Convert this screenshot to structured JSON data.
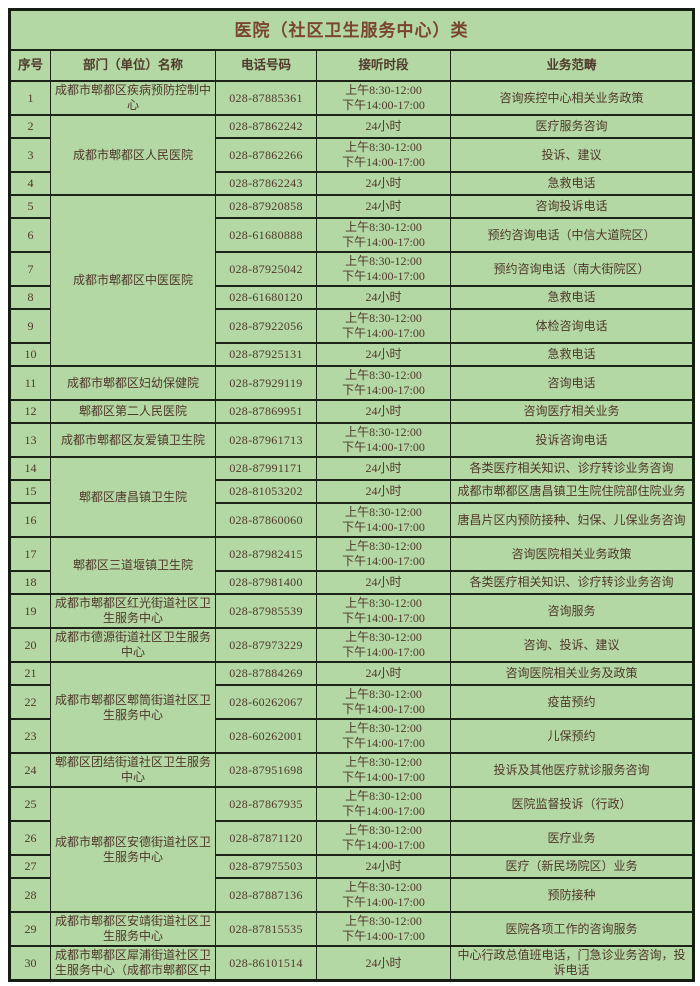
{
  "title": "医院（社区卫生服务中心）类",
  "colors": {
    "table_background": "#b3d8a4",
    "body_text": "#4f372b",
    "title_text": "#7a452f",
    "border": "#1c2418",
    "page_background": "#ffffff"
  },
  "table": {
    "headers": [
      "序号",
      "部门（单位）名称",
      "电话号码",
      "接听时段",
      "业务范畴"
    ],
    "rows": [
      {
        "no": "1",
        "dept": "成都市郫都区疾病预防控制中心",
        "dept_span": 1,
        "phone": "028-87885361",
        "hours": [
          "上午8:30-12:00",
          "下午14:00-17:00"
        ],
        "scope": "咨询疾控中心相关业务政策"
      },
      {
        "no": "2",
        "dept": "成都市郫都区人民医院",
        "dept_span": 3,
        "phone": "028-87862242",
        "hours": [
          "24小时"
        ],
        "scope": "医疗服务咨询"
      },
      {
        "no": "3",
        "phone": "028-87862266",
        "hours": [
          "上午8:30-12:00",
          "下午14:00-17:00"
        ],
        "scope": "投诉、建议"
      },
      {
        "no": "4",
        "phone": "028-87862243",
        "hours": [
          "24小时"
        ],
        "scope": "急救电话"
      },
      {
        "no": "5",
        "dept": "成都市郫都区中医医院",
        "dept_span": 6,
        "phone": "028-87920858",
        "hours": [
          "24小时"
        ],
        "scope": "咨询投诉电话"
      },
      {
        "no": "6",
        "phone": "028-61680888",
        "hours": [
          "上午8:30-12:00",
          "下午14:00-17:00"
        ],
        "scope": "预约咨询电话（中信大道院区）"
      },
      {
        "no": "7",
        "phone": "028-87925042",
        "hours": [
          "上午8:30-12:00",
          "下午14:00-17:00"
        ],
        "scope": "预约咨询电话（南大街院区）"
      },
      {
        "no": "8",
        "phone": "028-61680120",
        "hours": [
          "24小时"
        ],
        "scope": "急救电话"
      },
      {
        "no": "9",
        "phone": "028-87922056",
        "hours": [
          "上午8:30-12:00",
          "下午14:00-17:00"
        ],
        "scope": "体检咨询电话"
      },
      {
        "no": "10",
        "phone": "028-87925131",
        "hours": [
          "24小时"
        ],
        "scope": "急救电话"
      },
      {
        "no": "11",
        "dept": "成都市郫都区妇幼保健院",
        "dept_span": 1,
        "phone": "028-87929119",
        "hours": [
          "上午8:30-12:00",
          "下午14:00-17:00"
        ],
        "scope": "咨询电话"
      },
      {
        "no": "12",
        "dept": "郫都区第二人民医院",
        "dept_span": 1,
        "phone": "028-87869951",
        "hours": [
          "24小时"
        ],
        "scope": "咨询医疗相关业务"
      },
      {
        "no": "13",
        "dept": "成都市郫都区友爱镇卫生院",
        "dept_span": 1,
        "phone": "028-87961713",
        "hours": [
          "上午8:30-12:00",
          "下午14:00-17:00"
        ],
        "scope": "投诉咨询电话"
      },
      {
        "no": "14",
        "dept": "郫都区唐昌镇卫生院",
        "dept_span": 3,
        "phone": "028-87991171",
        "hours": [
          "24小时"
        ],
        "scope": "各类医疗相关知识、诊疗转诊业务咨询"
      },
      {
        "no": "15",
        "phone": "028-81053202",
        "hours": [
          "24小时"
        ],
        "scope": "成都市郫都区唐昌镇卫生院住院部住院业务"
      },
      {
        "no": "16",
        "phone": "028-87860060",
        "hours": [
          "上午8:30-12:00",
          "下午14:00-17:00"
        ],
        "scope": "唐昌片区内预防接种、妇保、儿保业务咨询"
      },
      {
        "no": "17",
        "dept": "郫都区三道堰镇卫生院",
        "dept_span": 2,
        "phone": "028-87982415",
        "hours": [
          "上午8:30-12:00",
          "下午14:00-17:00"
        ],
        "scope": "咨询医院相关业务政策"
      },
      {
        "no": "18",
        "phone": "028-87981400",
        "hours": [
          "24小时"
        ],
        "scope": "各类医疗相关知识、诊疗转诊业务咨询"
      },
      {
        "no": "19",
        "dept": "成都市郫都区红光街道社区卫生服务中心",
        "dept_span": 1,
        "phone": "028-87985539",
        "hours": [
          "上午8:30-12:00",
          "下午14:00-17:00"
        ],
        "scope": "咨询服务"
      },
      {
        "no": "20",
        "dept": "成都市德源街道社区卫生服务中心",
        "dept_span": 1,
        "phone": "028-87973229",
        "hours": [
          "上午8:30-12:00",
          "下午14:00-17:00"
        ],
        "scope": "咨询、投诉、建议"
      },
      {
        "no": "21",
        "dept": "成都市郫都区郫筒街道社区卫生服务中心",
        "dept_span": 3,
        "phone": "028-87884269",
        "hours": [
          "24小时"
        ],
        "scope": "咨询医院相关业务及政策"
      },
      {
        "no": "22",
        "phone": "028-60262067",
        "hours": [
          "上午8:30-12:00",
          "下午14:00-17:00"
        ],
        "scope": "疫苗预约"
      },
      {
        "no": "23",
        "phone": "028-60262001",
        "hours": [
          "上午8:30-12:00",
          "下午14:00-17:00"
        ],
        "scope": "儿保预约"
      },
      {
        "no": "24",
        "dept": "郫都区团结街道社区卫生服务中心",
        "dept_span": 1,
        "phone": "028-87951698",
        "hours": [
          "上午8:30-12:00",
          "下午14:00-17:00"
        ],
        "scope": "投诉及其他医疗就诊服务咨询"
      },
      {
        "no": "25",
        "dept": "成都市郫都区安德街道社区卫生服务中心",
        "dept_span": 4,
        "phone": "028-87867935",
        "hours": [
          "上午8:30-12:00",
          "下午14:00-17:00"
        ],
        "scope": "医院监督投诉（行政）"
      },
      {
        "no": "26",
        "phone": "028-87871120",
        "hours": [
          "上午8:30-12:00",
          "下午14:00-17:00"
        ],
        "scope": "医疗业务"
      },
      {
        "no": "27",
        "phone": "028-87975503",
        "hours": [
          "24小时"
        ],
        "scope": "医疗（新民场院区）业务"
      },
      {
        "no": "28",
        "phone": "028-87887136",
        "hours": [
          "上午8:30-12:00",
          "下午14:00-17:00"
        ],
        "scope": "预防接种"
      },
      {
        "no": "29",
        "dept": "成都市郫都区安靖街道社区卫生服务中心",
        "dept_span": 1,
        "phone": "028-87815535",
        "hours": [
          "上午8:30-12:00",
          "下午14:00-17:00"
        ],
        "scope": "医院各项工作的咨询服务"
      },
      {
        "no": "30",
        "dept": "成都市郫都区犀浦街道社区卫生服务中心（成都市郫都区中",
        "dept_span": 1,
        "phone": "028-86101514",
        "hours": [
          "24小时"
        ],
        "scope": "中心行政总值班电话，门急诊业务咨询，投诉电话"
      }
    ]
  }
}
